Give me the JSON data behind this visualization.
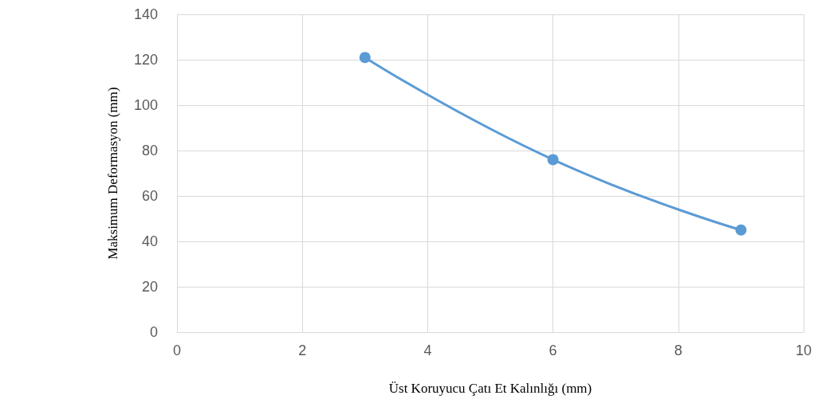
{
  "chart_data": {
    "type": "line",
    "xlabel": "Üst Koruyucu Çatı Et Kalınlığı (mm)",
    "ylabel": "Maksimum Deformasyon (mm)",
    "x": [
      3,
      6,
      9
    ],
    "series": [
      {
        "color": "#5b9bd5",
        "values": [
          121,
          76,
          45
        ]
      }
    ],
    "xlim": [
      0,
      10
    ],
    "xticks": [
      0,
      2,
      4,
      6,
      8,
      10
    ],
    "ylim": [
      0,
      140
    ],
    "yticks": [
      0,
      20,
      40,
      60,
      80,
      100,
      120,
      140
    ],
    "grid": true,
    "marker": "circle",
    "line_style": "solid"
  }
}
